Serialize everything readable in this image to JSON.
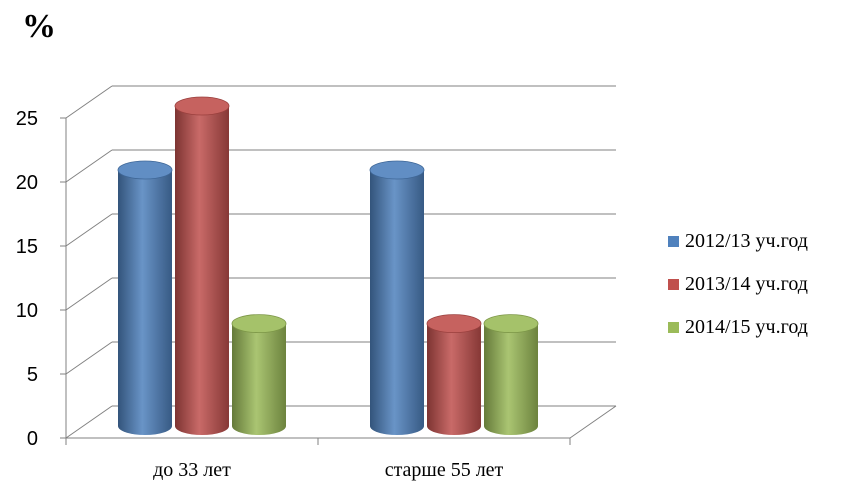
{
  "chart_data": {
    "type": "bar",
    "unit_label": "%",
    "categories": [
      "до 33 лет",
      "старше 55 лет"
    ],
    "series": [
      {
        "name": "2012/13 уч.год",
        "values": [
          20,
          20
        ],
        "color": "#4F81BD"
      },
      {
        "name": "2013/14 уч.год",
        "values": [
          25,
          8
        ],
        "color": "#C0504D"
      },
      {
        "name": "2014/15 уч.год",
        "values": [
          8,
          8
        ],
        "color": "#9BBB59"
      }
    ],
    "yticks": [
      "0",
      "5",
      "10",
      "15",
      "20",
      "25"
    ],
    "ylim": [
      0,
      25
    ],
    "grid": true,
    "legend_position": "right",
    "three_d": true
  }
}
